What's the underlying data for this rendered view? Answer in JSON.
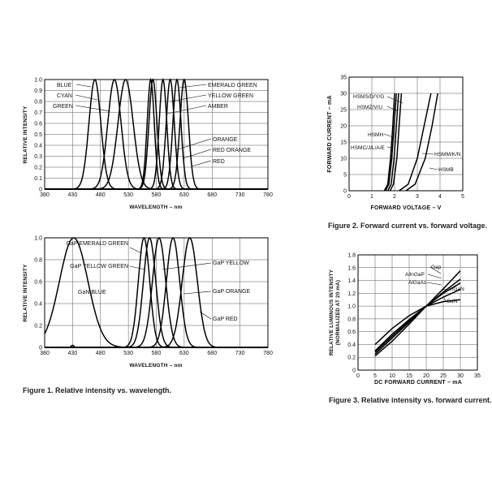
{
  "captions": {
    "fig1": "Figure 1. Relative intensity vs. wavelength.",
    "fig2": "Figure 2. Forward current vs. forward voltage.",
    "fig3": "Figure 3. Relative intensity vs. forward current."
  },
  "chart_data": [
    {
      "id": "fig1a",
      "type": "line",
      "title": "",
      "xlabel": "WAVELENGTH – nm",
      "ylabel": "RELATIVE INTENSITY",
      "xlim": [
        380,
        780
      ],
      "ylim": [
        0,
        1.0
      ],
      "xticks": [
        "380",
        "430",
        "480",
        "530",
        "580",
        "630",
        "680",
        "730",
        "780"
      ],
      "yticks": [
        "0",
        "0.1",
        "0.2",
        "0.3",
        "0.4",
        "0.5",
        "0.6",
        "0.7",
        "0.8",
        "0.9",
        "1.0"
      ],
      "series": [
        {
          "name": "BLUE",
          "peak": 470,
          "fwhm": 25
        },
        {
          "name": "CYAN",
          "peak": 505,
          "fwhm": 28
        },
        {
          "name": "GREEN",
          "peak": 525,
          "fwhm": 32
        },
        {
          "name": "EMERALD GREEN",
          "peak": 570,
          "fwhm": 15
        },
        {
          "name": "YELLOW GREEN",
          "peak": 574,
          "fwhm": 17
        },
        {
          "name": "AMBER",
          "peak": 592,
          "fwhm": 16
        },
        {
          "name": "ORANGE",
          "peak": 605,
          "fwhm": 17
        },
        {
          "name": "RED ORANGE",
          "peak": 617,
          "fwhm": 17
        },
        {
          "name": "RED",
          "peak": 630,
          "fwhm": 18
        }
      ]
    },
    {
      "id": "fig1b",
      "type": "line",
      "title": "",
      "xlabel": "WAVELENGTH – nm",
      "ylabel": "RELATIVE INTENSITY",
      "xlim": [
        380,
        780
      ],
      "ylim": [
        0,
        1.0
      ],
      "xticks": [
        "380",
        "430",
        "480",
        "530",
        "580",
        "630",
        "680",
        "730",
        "780"
      ],
      "yticks": [
        "0",
        "0.2",
        "0.4",
        "0.6",
        "0.8",
        "1.0"
      ],
      "series": [
        {
          "name": "GaN BLUE",
          "peak": 432,
          "fwhm": 60
        },
        {
          "name": "GaP EMERALD GREEN",
          "peak": 558,
          "fwhm": 24
        },
        {
          "name": "GaP YELLOW GREEN",
          "peak": 568,
          "fwhm": 26
        },
        {
          "name": "GaP YELLOW",
          "peak": 585,
          "fwhm": 28
        },
        {
          "name": "GaP ORANGE",
          "peak": 610,
          "fwhm": 28
        },
        {
          "name": "GaP RED",
          "peak": 640,
          "fwhm": 32
        }
      ]
    },
    {
      "id": "fig2",
      "type": "line",
      "title": "",
      "xlabel": "FORWARD VOLTAGE – V",
      "ylabel": "FORWARD CURRENT – mA",
      "xlim": [
        0,
        5
      ],
      "ylim": [
        0,
        35
      ],
      "xticks": [
        "0",
        "1",
        "2",
        "3",
        "4",
        "5"
      ],
      "yticks": [
        "0",
        "5",
        "10",
        "15",
        "20",
        "25",
        "30",
        "35"
      ],
      "series": [
        {
          "name": "HSMS/D/Y/G",
          "x": [
            1.8,
            1.95,
            2.1,
            2.2,
            2.3
          ],
          "y": [
            0,
            2,
            10,
            20,
            30
          ]
        },
        {
          "name": "HSMZ/V/U",
          "x": [
            1.7,
            1.85,
            1.98,
            2.08,
            2.18
          ],
          "y": [
            0,
            2,
            10,
            20,
            30
          ]
        },
        {
          "name": "HSMH",
          "x": [
            1.6,
            1.75,
            1.88,
            1.98,
            2.08
          ],
          "y": [
            0,
            2,
            10,
            20,
            30
          ]
        },
        {
          "name": "HSMC/J/L/A/E",
          "x": [
            1.55,
            1.7,
            1.82,
            1.92,
            2.0
          ],
          "y": [
            0,
            2,
            10,
            20,
            30
          ]
        },
        {
          "name": "HSMM/K/N",
          "x": [
            2.2,
            2.6,
            3.0,
            3.3,
            3.6
          ],
          "y": [
            0,
            2,
            10,
            20,
            30
          ]
        },
        {
          "name": "HSMB",
          "x": [
            2.5,
            2.9,
            3.35,
            3.65,
            3.9
          ],
          "y": [
            0,
            2,
            10,
            20,
            30
          ]
        }
      ]
    },
    {
      "id": "fig3",
      "type": "line",
      "title": "",
      "xlabel": "DC FORWARD CURRENT – mA",
      "ylabel": "RELATIVE LUMINOUS INTENSITY",
      "ylabel2": "(NORMALIZED AT 20 mA)",
      "xlim": [
        0,
        35
      ],
      "ylim": [
        0,
        1.8
      ],
      "xticks": [
        "0",
        "5",
        "10",
        "15",
        "20",
        "25",
        "30",
        "35"
      ],
      "yticks": [
        "0",
        "0.2",
        "0.4",
        "0.6",
        "0.8",
        "1.0",
        "1.2",
        "1.4",
        "1.6",
        "1.8"
      ],
      "series": [
        {
          "name": "Gap",
          "x": [
            5,
            10,
            15,
            20,
            25,
            30
          ],
          "y": [
            0.22,
            0.45,
            0.72,
            1.0,
            1.27,
            1.55
          ]
        },
        {
          "name": "AllnGaP",
          "x": [
            5,
            10,
            15,
            20,
            25,
            30
          ],
          "y": [
            0.25,
            0.5,
            0.75,
            1.0,
            1.22,
            1.42
          ]
        },
        {
          "name": "AlGaAs",
          "x": [
            5,
            10,
            15,
            20,
            25,
            30
          ],
          "y": [
            0.28,
            0.53,
            0.77,
            1.0,
            1.2,
            1.36
          ]
        },
        {
          "name": "InGaN",
          "x": [
            5,
            10,
            15,
            20,
            25,
            30
          ],
          "y": [
            0.3,
            0.56,
            0.79,
            1.0,
            1.14,
            1.26
          ]
        },
        {
          "name": "GaN",
          "x": [
            5,
            10,
            15,
            20,
            25,
            30
          ],
          "y": [
            0.4,
            0.65,
            0.85,
            1.0,
            1.07,
            1.1
          ]
        }
      ]
    }
  ]
}
